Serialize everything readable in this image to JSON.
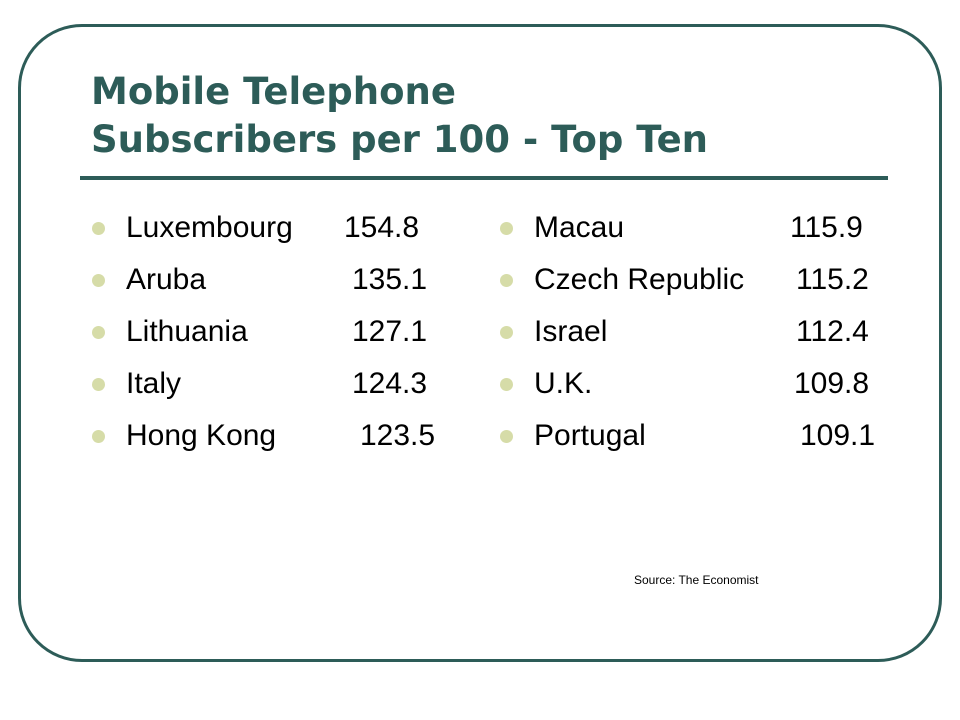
{
  "slide": {
    "title_line1": "Mobile Telephone",
    "title_line2": "Subscribers per 100 - Top Ten",
    "accent_color": "#2d5c58",
    "bullet_color": "#d6dca8",
    "left_column": [
      {
        "country": "Luxembourg",
        "value": "154.8"
      },
      {
        "country": "Aruba",
        "value": "135.1"
      },
      {
        "country": "Lithuania",
        "value": "127.1"
      },
      {
        "country": "Italy",
        "value": "124.3"
      },
      {
        "country": "Hong Kong",
        "value": "123.5"
      }
    ],
    "right_column": [
      {
        "country": "Macau",
        "value": "115.9"
      },
      {
        "country": "Czech Republic",
        "value": "115.2"
      },
      {
        "country": "Israel",
        "value": "112.4"
      },
      {
        "country": "U.K.",
        "value": "109.8"
      },
      {
        "country": "Portugal",
        "value": "109.1"
      }
    ],
    "source": "Source: The Economist"
  }
}
